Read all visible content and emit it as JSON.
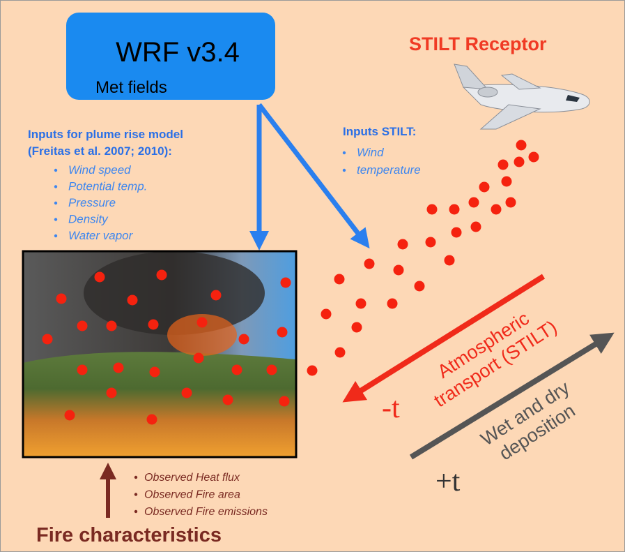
{
  "wrf_box": {
    "title": "WRF v3.4",
    "subtitle": "Met fields"
  },
  "plume_inputs": {
    "heading": [
      "Inputs for plume rise model",
      "(Freitas et al. 2007; 2010):"
    ],
    "items": [
      "Wind speed",
      "Potential temp.",
      "Pressure",
      "Density",
      "Water vapor"
    ]
  },
  "stilt_inputs": {
    "heading": "Inputs STILT:",
    "items": [
      "Wind",
      "temperature"
    ]
  },
  "receptor": {
    "label": "STILT Receptor"
  },
  "transport": {
    "label": [
      "Atmospheric",
      "transport (STILT)"
    ],
    "time": "-t"
  },
  "deposition": {
    "label": [
      "Wet and dry",
      "deposition"
    ],
    "time": "+t"
  },
  "fire": {
    "observations": [
      "Observed Heat flux",
      "Observed Fire area",
      "Observed Fire emissions"
    ],
    "label": "Fire characteristics"
  }
}
